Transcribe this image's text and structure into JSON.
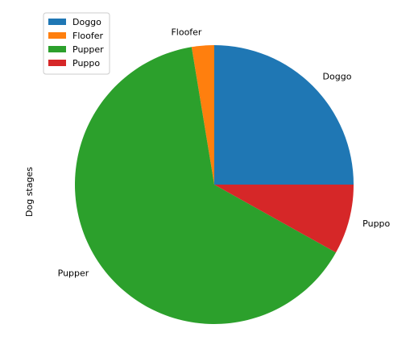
{
  "chart_data": {
    "type": "pie",
    "title": "",
    "ylabel": "Dog stages",
    "start_angle_deg": 0,
    "direction": "counterclockwise",
    "legend_position": "top-left",
    "categories": [
      "Doggo",
      "Floofer",
      "Pupper",
      "Puppo"
    ],
    "values": [
      25.0,
      2.6,
      64.3,
      8.1
    ],
    "colors": [
      "#1f77b4",
      "#ff7f0e",
      "#2ca02c",
      "#d62728"
    ],
    "legend": [
      "Doggo",
      "Floofer",
      "Pupper",
      "Puppo"
    ]
  }
}
